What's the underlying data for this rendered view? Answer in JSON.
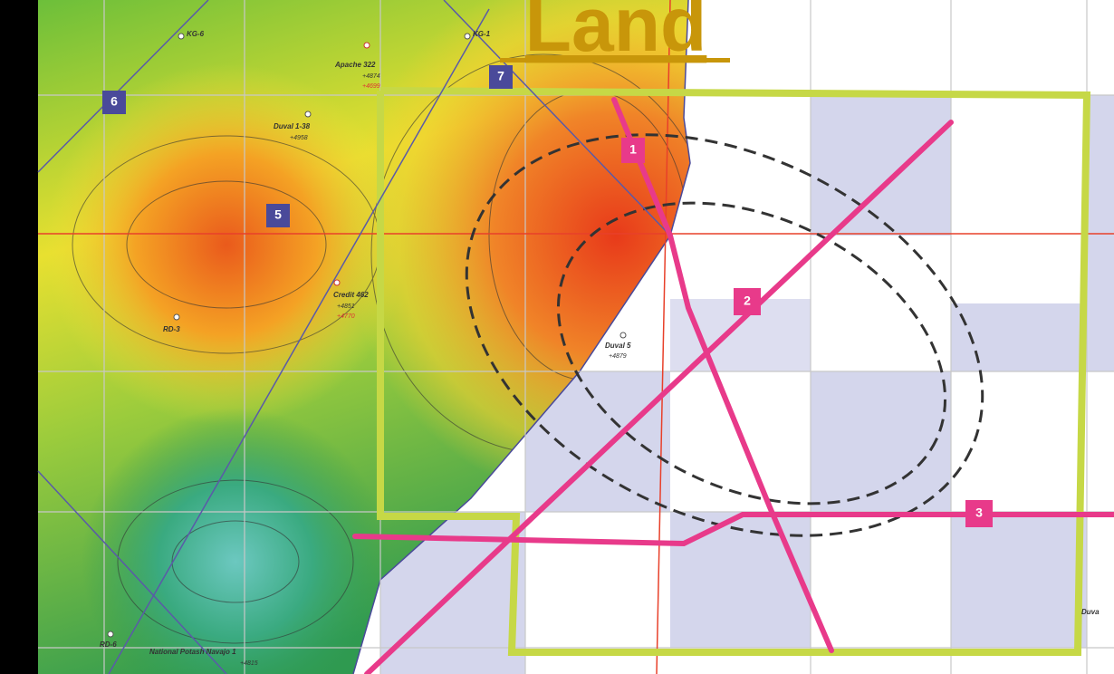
{
  "title": "Land",
  "line_labels": [
    "6",
    "7",
    "5",
    "1",
    "2",
    "3"
  ],
  "wells": [
    {
      "name": "KG-6"
    },
    {
      "name": "KG-1"
    },
    {
      "name": "Apache 322",
      "depth": "+4874",
      "depth2": "+4699"
    },
    {
      "name": "Duval 1-38",
      "depth": "+4958"
    },
    {
      "name": "Credit 462",
      "depth": "+4851",
      "depth2": "+4770"
    },
    {
      "name": "Duval 5",
      "depth": "+4879"
    },
    {
      "name": "RD-3"
    },
    {
      "name": "RD-6"
    },
    {
      "name": "National Potash Navajo 1",
      "depth": "+4815"
    },
    {
      "name": "Duva"
    }
  ]
}
